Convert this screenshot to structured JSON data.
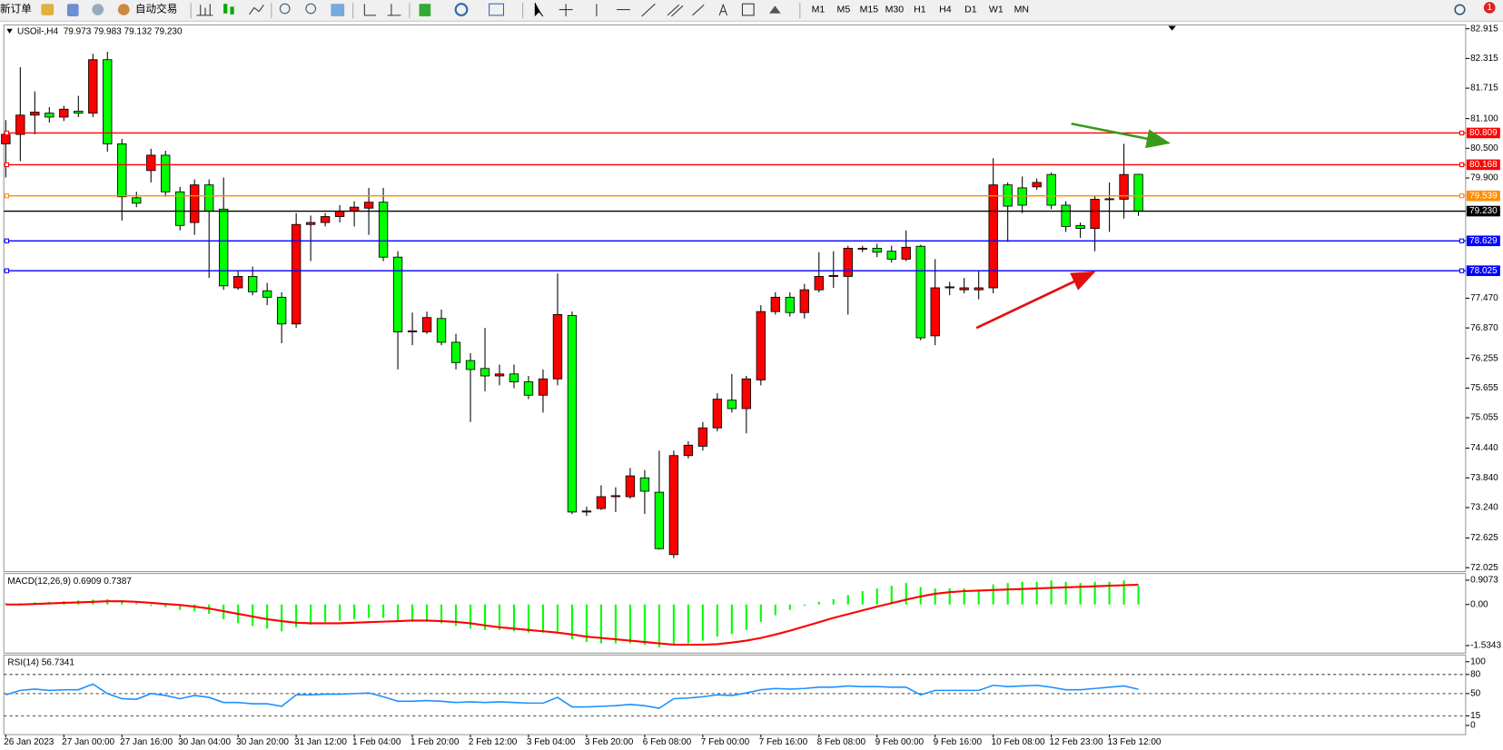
{
  "toolbar": {
    "new_order": "新订单",
    "auto_trading": "自动交易",
    "timeframes": [
      "M1",
      "M5",
      "M15",
      "M30",
      "H1",
      "H4",
      "D1",
      "W1",
      "MN"
    ],
    "notifications": 1
  },
  "chart_data": [
    {
      "type": "candlestick",
      "title": "USOil-,H4",
      "subtitle": "79.973 79.983 79.132 79.230",
      "categories": [
        "26 Jan 2023",
        null,
        null,
        null,
        "27 Jan 00:00",
        null,
        null,
        null,
        "27 Jan 16:00",
        null,
        null,
        null,
        "30 Jan 04:00",
        null,
        null,
        null,
        "30 Jan 20:00",
        null,
        null,
        null,
        "31 Jan 12:00",
        null,
        null,
        null,
        "1 Feb 04:00",
        null,
        null,
        null,
        "1 Feb 20:00",
        null,
        null,
        null,
        "2 Feb 12:00",
        null,
        null,
        null,
        "3 Feb 04:00",
        null,
        null,
        null,
        "3 Feb 20:00",
        null,
        null,
        null,
        "6 Feb 08:00",
        null,
        null,
        null,
        "7 Feb 00:00",
        null,
        null,
        null,
        "7 Feb 16:00",
        null,
        null,
        null,
        "8 Feb 08:00",
        null,
        null,
        null,
        "9 Feb 00:00",
        null,
        null,
        null,
        "9 Feb 16:00",
        null,
        null,
        null,
        "10 Feb 08:00",
        null,
        null,
        null,
        "12 Feb 23:00",
        null,
        null,
        null,
        "13 Feb 12:00",
        null,
        null
      ],
      "open": [
        80.59,
        80.78,
        81.17,
        81.21,
        81.13,
        81.25,
        81.21,
        82.29,
        80.59,
        79.5,
        80.05,
        80.36,
        79.62,
        79.0,
        79.76,
        79.27,
        77.68,
        77.91,
        77.62,
        77.49,
        76.95,
        78.96,
        79.0,
        79.12,
        79.23,
        79.29,
        79.41,
        78.3,
        76.79,
        76.79,
        77.06,
        76.58,
        76.21,
        76.05,
        75.9,
        75.94,
        75.78,
        75.51,
        75.84,
        77.12,
        73.15,
        73.22,
        73.46,
        73.46,
        73.84,
        73.55,
        72.29,
        74.29,
        74.48,
        74.85,
        75.41,
        75.24,
        75.82,
        77.2,
        77.49,
        77.18,
        77.64,
        77.91,
        77.91,
        78.46,
        78.48,
        78.42,
        78.26,
        78.52,
        76.71,
        77.68,
        77.64,
        77.64,
        77.68,
        79.76,
        79.7,
        79.72,
        79.97,
        79.35,
        78.94,
        78.88,
        79.47,
        79.47,
        79.973
      ],
      "high": [
        81.07,
        82.14,
        81.65,
        81.33,
        81.36,
        81.56,
        82.41,
        82.45,
        80.69,
        79.62,
        80.49,
        80.45,
        79.72,
        79.87,
        79.87,
        79.91,
        78.03,
        78.11,
        77.78,
        77.59,
        79.19,
        79.14,
        79.19,
        79.35,
        79.43,
        79.7,
        79.7,
        78.42,
        77.18,
        77.2,
        77.24,
        76.75,
        76.36,
        76.87,
        76.13,
        76.13,
        75.9,
        76.03,
        77.97,
        77.2,
        73.26,
        73.69,
        73.65,
        74.04,
        74.0,
        74.39,
        74.39,
        74.58,
        74.97,
        75.55,
        75.94,
        75.9,
        77.33,
        77.59,
        77.59,
        77.76,
        78.4,
        78.42,
        78.53,
        78.53,
        78.57,
        78.53,
        78.84,
        78.55,
        78.26,
        77.8,
        77.88,
        78.03,
        80.3,
        79.81,
        79.93,
        79.89,
        80.01,
        79.43,
        79.0,
        79.54,
        79.81,
        80.59,
        79.983
      ],
      "low": [
        79.91,
        80.24,
        80.78,
        81.02,
        81.05,
        81.13,
        81.13,
        80.43,
        79.04,
        79.31,
        79.81,
        79.52,
        78.84,
        78.75,
        77.88,
        77.64,
        77.64,
        77.53,
        77.33,
        76.56,
        76.87,
        78.22,
        78.92,
        79.0,
        78.92,
        78.75,
        78.22,
        76.03,
        76.52,
        76.75,
        76.52,
        76.03,
        74.97,
        75.59,
        75.71,
        75.65,
        75.43,
        75.16,
        75.71,
        73.11,
        73.07,
        73.19,
        73.15,
        73.42,
        73.11,
        72.39,
        72.22,
        74.23,
        74.39,
        74.78,
        75.16,
        74.74,
        75.71,
        77.14,
        77.1,
        77.06,
        77.59,
        77.68,
        77.14,
        78.4,
        78.3,
        78.19,
        78.22,
        76.62,
        76.52,
        77.53,
        77.57,
        77.45,
        77.57,
        78.61,
        79.19,
        79.66,
        79.27,
        78.81,
        78.69,
        78.42,
        78.81,
        79.08,
        79.132
      ],
      "close": [
        80.78,
        81.17,
        81.23,
        81.13,
        81.29,
        81.21,
        82.29,
        80.59,
        79.52,
        79.39,
        80.36,
        79.62,
        78.94,
        79.76,
        79.23,
        77.72,
        77.91,
        77.6,
        77.49,
        76.95,
        78.96,
        79.0,
        79.12,
        79.23,
        79.31,
        79.41,
        78.3,
        76.79,
        76.81,
        77.08,
        76.58,
        76.17,
        76.03,
        75.9,
        75.94,
        75.78,
        75.51,
        75.84,
        77.14,
        73.15,
        73.17,
        73.46,
        73.48,
        73.88,
        73.57,
        72.41,
        74.29,
        74.5,
        74.85,
        75.43,
        75.24,
        75.84,
        77.2,
        77.49,
        77.18,
        77.64,
        77.91,
        77.93,
        78.48,
        78.48,
        78.4,
        78.26,
        78.5,
        76.67,
        77.68,
        77.7,
        77.68,
        77.68,
        79.76,
        79.33,
        79.35,
        79.81,
        79.35,
        78.92,
        78.88,
        79.47,
        79.48,
        79.97,
        79.23
      ],
      "up_color": "#ff0000",
      "down_color": "#00ff00",
      "ylim": [
        71.965,
        82.973
      ],
      "yticks": [
        82.915,
        82.315,
        81.715,
        {
          "value": 81.1,
          "label": "81.100"
        },
        {
          "value": 80.5,
          "label": "80.500"
        },
        {
          "value": 79.9,
          "label": "79.900"
        },
        {
          "value": 77.47,
          "label": "77.470"
        },
        {
          "value": 76.87,
          "label": "76.870"
        },
        76.255,
        75.655,
        75.055,
        {
          "value": 74.44,
          "label": "74.440"
        },
        {
          "value": 73.84,
          "label": "73.840"
        },
        {
          "value": 73.24,
          "label": "73.240"
        },
        72.625,
        72.025
      ],
      "hlines": [
        {
          "value": 80.809,
          "color": "#ff0000"
        },
        {
          "value": 80.168,
          "color": "#ff0000"
        },
        {
          "value": 79.539,
          "color": "#ff8c00"
        },
        {
          "value": 79.23,
          "label": "79.230",
          "color": "#000000"
        },
        {
          "value": 78.629,
          "color": "#0000ff"
        },
        {
          "value": 78.025,
          "color": "#0000ff"
        }
      ]
    },
    {
      "type": "macd",
      "title": "MACD(12,26,9) 0.6909 0.7387",
      "series": [
        {
          "kind": "histogram",
          "color": "#00ff00",
          "values": [
            0.05,
            0.05,
            0.08,
            0.1,
            0.12,
            0.15,
            0.18,
            0.2,
            0.15,
            0.05,
            -0.05,
            -0.1,
            -0.2,
            -0.25,
            -0.35,
            -0.55,
            -0.7,
            -0.8,
            -0.9,
            -1.0,
            -0.85,
            -0.75,
            -0.65,
            -0.6,
            -0.55,
            -0.5,
            -0.5,
            -0.6,
            -0.65,
            -0.65,
            -0.7,
            -0.8,
            -0.9,
            -0.95,
            -0.95,
            -1.0,
            -1.05,
            -1.05,
            -1.0,
            -1.3,
            -1.4,
            -1.45,
            -1.45,
            -1.45,
            -1.5,
            -1.6,
            -1.5,
            -1.45,
            -1.35,
            -1.2,
            -1.1,
            -0.95,
            -0.65,
            -0.4,
            -0.2,
            -0.05,
            0.1,
            0.2,
            0.35,
            0.5,
            0.6,
            0.7,
            0.8,
            0.65,
            0.6,
            0.6,
            0.6,
            0.55,
            0.75,
            0.8,
            0.85,
            0.85,
            0.9,
            0.85,
            0.8,
            0.85,
            0.85,
            0.9,
            0.6909
          ]
        },
        {
          "kind": "line",
          "color": "#ff0000",
          "values": [
            0,
            0,
            0.02,
            0.04,
            0.06,
            0.08,
            0.1,
            0.12,
            0.12,
            0.1,
            0.06,
            0.02,
            -0.02,
            -0.08,
            -0.15,
            -0.25,
            -0.35,
            -0.45,
            -0.55,
            -0.62,
            -0.68,
            -0.7,
            -0.7,
            -0.7,
            -0.68,
            -0.66,
            -0.64,
            -0.62,
            -0.6,
            -0.6,
            -0.62,
            -0.65,
            -0.7,
            -0.78,
            -0.85,
            -0.9,
            -0.95,
            -1.0,
            -1.05,
            -1.12,
            -1.2,
            -1.25,
            -1.3,
            -1.35,
            -1.4,
            -1.45,
            -1.5,
            -1.5,
            -1.5,
            -1.48,
            -1.42,
            -1.35,
            -1.25,
            -1.12,
            -0.98,
            -0.82,
            -0.66,
            -0.5,
            -0.36,
            -0.22,
            -0.08,
            0.05,
            0.18,
            0.3,
            0.4,
            0.46,
            0.5,
            0.52,
            0.54,
            0.56,
            0.58,
            0.6,
            0.62,
            0.64,
            0.66,
            0.68,
            0.7,
            0.72,
            0.7387
          ]
        }
      ],
      "ylim": [
        -1.78,
        1.12
      ],
      "yticks": [
        0.9073,
        {
          "value": 0,
          "label": "0.00"
        },
        -1.5343
      ]
    },
    {
      "type": "line",
      "title": "RSI(14) 56.7341",
      "color": "#1e90ff",
      "values": [
        48,
        55,
        57,
        55,
        56,
        56,
        65,
        50,
        42,
        41,
        50,
        47,
        42,
        47,
        44,
        36,
        36,
        34,
        34,
        30,
        48,
        48,
        49,
        49,
        50,
        51,
        45,
        38,
        38,
        39,
        38,
        36,
        37,
        36,
        37,
        36,
        35,
        35,
        44,
        29,
        29,
        30,
        31,
        33,
        31,
        27,
        42,
        43,
        45,
        48,
        47,
        51,
        56,
        58,
        57,
        58,
        60,
        60,
        62,
        61,
        61,
        60,
        60,
        48,
        55,
        55,
        55,
        55,
        63,
        61,
        62,
        63,
        60,
        56,
        56,
        58,
        60,
        62,
        56.7341
      ],
      "ylim": [
        -13,
        109
      ],
      "yticks": [
        100,
        80,
        50,
        15,
        0
      ],
      "levels": [
        80,
        50,
        15
      ]
    }
  ]
}
